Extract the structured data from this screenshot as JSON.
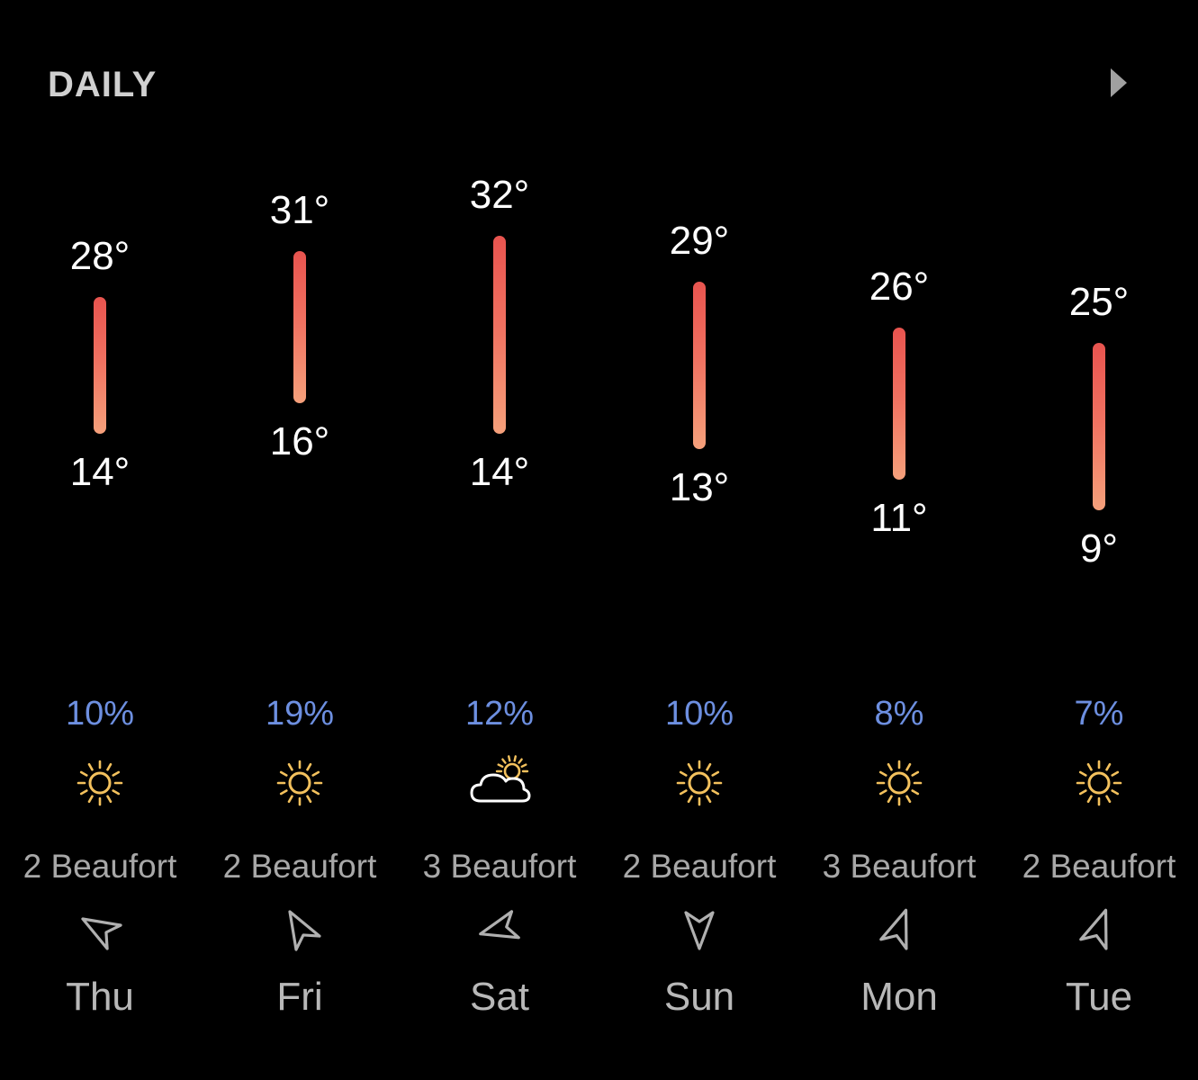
{
  "header": {
    "title": "DAILY",
    "next_icon": "chevron-right-icon"
  },
  "colors": {
    "background": "#000000",
    "bar_top": "#e8544f",
    "bar_bottom": "#f5a07b",
    "precip": "#6d8fe0",
    "sun": "#f3c15d",
    "secondary_text": "#a8a8a8"
  },
  "days": [
    {
      "day": "Thu",
      "high_value": 28,
      "low_value": 14,
      "high": "28°",
      "low": "14°",
      "precip": "10%",
      "icon": "sun-icon",
      "wind": "2 Beaufort",
      "wind_icon": "wind-direction-arrow-icon",
      "wind_direction_deg": 300
    },
    {
      "day": "Fri",
      "high_value": 31,
      "low_value": 16,
      "high": "31°",
      "low": "16°",
      "precip": "19%",
      "icon": "sun-icon",
      "wind": "2 Beaufort",
      "wind_icon": "wind-direction-arrow-icon",
      "wind_direction_deg": 330
    },
    {
      "day": "Sat",
      "high_value": 32,
      "low_value": 14,
      "high": "32°",
      "low": "14°",
      "precip": "12%",
      "icon": "partly-cloudy-icon",
      "wind": "3 Beaufort",
      "wind_icon": "wind-direction-arrow-icon",
      "wind_direction_deg": 255
    },
    {
      "day": "Sun",
      "high_value": 29,
      "low_value": 13,
      "high": "29°",
      "low": "13°",
      "precip": "10%",
      "icon": "sun-icon",
      "wind": "2 Beaufort",
      "wind_icon": "wind-direction-arrow-icon",
      "wind_direction_deg": 180
    },
    {
      "day": "Mon",
      "high_value": 26,
      "low_value": 11,
      "high": "26°",
      "low": "11°",
      "precip": "8%",
      "icon": "sun-icon",
      "wind": "3 Beaufort",
      "wind_icon": "wind-direction-arrow-icon",
      "wind_direction_deg": 20
    },
    {
      "day": "Tue",
      "high_value": 25,
      "low_value": 9,
      "high": "25°",
      "low": "9°",
      "precip": "7%",
      "icon": "sun-icon",
      "wind": "2 Beaufort",
      "wind_icon": "wind-direction-arrow-icon",
      "wind_direction_deg": 20
    }
  ]
}
